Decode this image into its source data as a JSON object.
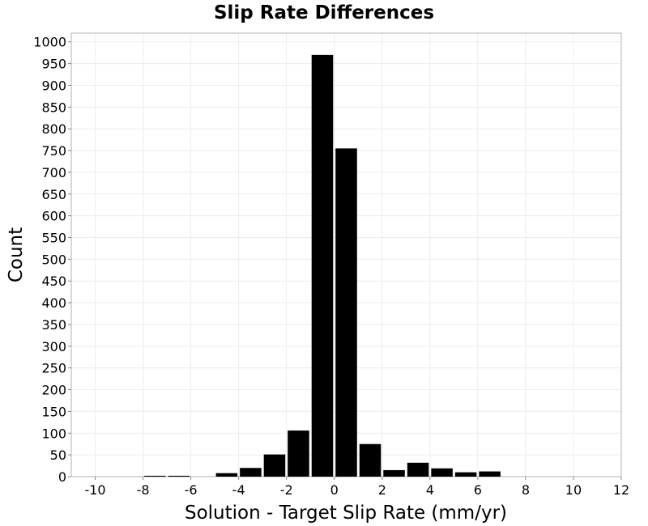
{
  "chart_data": {
    "type": "bar",
    "title": "Slip Rate Differences",
    "xlabel": "Solution - Target Slip Rate (mm/yr)",
    "ylabel": "Count",
    "xlim": [
      -11,
      12
    ],
    "ylim": [
      0,
      1020
    ],
    "x_ticks": [
      -10,
      -8,
      -6,
      -4,
      -2,
      0,
      2,
      4,
      6,
      8,
      10,
      12
    ],
    "y_ticks": [
      0,
      50,
      100,
      150,
      200,
      250,
      300,
      350,
      400,
      450,
      500,
      550,
      600,
      650,
      700,
      750,
      800,
      850,
      900,
      950,
      1000
    ],
    "bin_width": 1,
    "bins": [
      {
        "x": -7.5,
        "count": 2
      },
      {
        "x": -6.5,
        "count": 2
      },
      {
        "x": -4.5,
        "count": 8
      },
      {
        "x": -3.5,
        "count": 20
      },
      {
        "x": -2.5,
        "count": 51
      },
      {
        "x": -1.5,
        "count": 106
      },
      {
        "x": -0.5,
        "count": 970
      },
      {
        "x": 0.5,
        "count": 755
      },
      {
        "x": 1.5,
        "count": 75
      },
      {
        "x": 2.5,
        "count": 15
      },
      {
        "x": 3.5,
        "count": 32
      },
      {
        "x": 4.5,
        "count": 19
      },
      {
        "x": 5.5,
        "count": 10
      },
      {
        "x": 6.5,
        "count": 12
      }
    ],
    "bar_color": "#000000",
    "grid": true,
    "legend": "none"
  }
}
